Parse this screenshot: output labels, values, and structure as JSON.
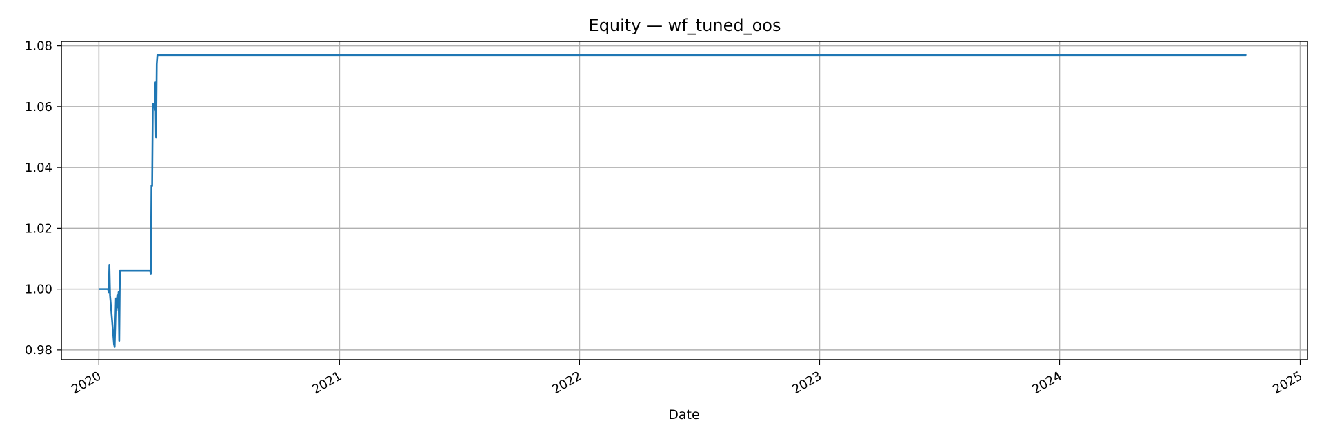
{
  "chart_data": {
    "type": "line",
    "title": "Equity — wf_tuned_oos",
    "xlabel": "Date",
    "ylabel": "",
    "x_type": "date",
    "xlim": [
      "2019-11-05",
      "2025-01-12"
    ],
    "ylim": [
      0.9768,
      1.0815
    ],
    "grid": true,
    "legend": "none",
    "x_ticks": [
      {
        "date": "2020-01-01",
        "label": "2020"
      },
      {
        "date": "2021-01-01",
        "label": "2021"
      },
      {
        "date": "2022-01-01",
        "label": "2022"
      },
      {
        "date": "2023-01-01",
        "label": "2023"
      },
      {
        "date": "2024-01-01",
        "label": "2024"
      },
      {
        "date": "2025-01-01",
        "label": "2025"
      }
    ],
    "y_ticks": [
      {
        "value": 0.98,
        "label": "0.98"
      },
      {
        "value": 1.0,
        "label": "1.00"
      },
      {
        "value": 1.02,
        "label": "1.02"
      },
      {
        "value": 1.04,
        "label": "1.04"
      },
      {
        "value": 1.06,
        "label": "1.06"
      },
      {
        "value": 1.08,
        "label": "1.08"
      }
    ],
    "series": [
      {
        "color": "#1f77b4",
        "points": [
          {
            "date": "2020-01-02",
            "value": 1.0
          },
          {
            "date": "2020-01-15",
            "value": 1.0
          },
          {
            "date": "2020-01-16",
            "value": 0.999
          },
          {
            "date": "2020-01-17",
            "value": 1.008
          },
          {
            "date": "2020-01-18",
            "value": 0.998
          },
          {
            "date": "2020-01-24",
            "value": 0.982
          },
          {
            "date": "2020-01-25",
            "value": 0.981
          },
          {
            "date": "2020-01-27",
            "value": 0.997
          },
          {
            "date": "2020-01-28",
            "value": 0.993
          },
          {
            "date": "2020-01-29",
            "value": 0.998
          },
          {
            "date": "2020-01-30",
            "value": 0.994
          },
          {
            "date": "2020-01-31",
            "value": 0.999
          },
          {
            "date": "2020-02-01",
            "value": 0.983
          },
          {
            "date": "2020-02-02",
            "value": 1.006
          },
          {
            "date": "2020-03-19",
            "value": 1.006
          },
          {
            "date": "2020-03-20",
            "value": 1.005
          },
          {
            "date": "2020-03-21",
            "value": 1.034
          },
          {
            "date": "2020-03-22",
            "value": 1.034
          },
          {
            "date": "2020-03-23",
            "value": 1.061
          },
          {
            "date": "2020-03-25",
            "value": 1.061
          },
          {
            "date": "2020-03-26",
            "value": 1.059
          },
          {
            "date": "2020-03-27",
            "value": 1.068
          },
          {
            "date": "2020-03-28",
            "value": 1.05
          },
          {
            "date": "2020-03-29",
            "value": 1.074
          },
          {
            "date": "2020-03-30",
            "value": 1.077
          },
          {
            "date": "2024-10-10",
            "value": 1.077
          }
        ]
      }
    ]
  }
}
